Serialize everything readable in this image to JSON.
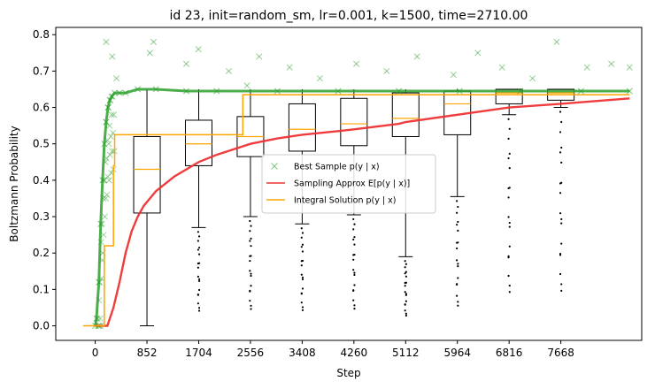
{
  "chart_data": {
    "type": "scatter",
    "title": "id 23, init=random_sm, lr=0.001, k=1500, time=2710.00",
    "xlabel": "Step",
    "ylabel": "Boltzmann Probability",
    "xlim": [
      -650,
      9000
    ],
    "ylim": [
      -0.04,
      0.82
    ],
    "x_ticks": [
      "0",
      "852",
      "1704",
      "2556",
      "3408",
      "4260",
      "5112",
      "5964",
      "6816",
      "7668"
    ],
    "y_ticks": [
      "0.0",
      "0.1",
      "0.2",
      "0.3",
      "0.4",
      "0.5",
      "0.6",
      "0.7",
      "0.8"
    ],
    "grid": false,
    "legend_position": "center",
    "series": [
      {
        "name": "Best Sample p(y | x)",
        "marker": "x",
        "color": "#2ca02c",
        "points": [
          [
            0,
            0.0
          ],
          [
            20,
            0.02
          ],
          [
            60,
            0.12
          ],
          [
            90,
            0.28
          ],
          [
            120,
            0.4
          ],
          [
            150,
            0.5
          ],
          [
            180,
            0.56
          ],
          [
            210,
            0.6
          ],
          [
            240,
            0.62
          ],
          [
            270,
            0.63
          ],
          [
            320,
            0.64
          ],
          [
            400,
            0.64
          ],
          [
            500,
            0.64
          ],
          [
            700,
            0.65
          ],
          [
            1000,
            0.65
          ],
          [
            1500,
            0.645
          ],
          [
            2000,
            0.645
          ],
          [
            3000,
            0.645
          ],
          [
            4000,
            0.645
          ],
          [
            5000,
            0.645
          ],
          [
            6000,
            0.645
          ],
          [
            7000,
            0.645
          ],
          [
            8000,
            0.645
          ],
          [
            8800,
            0.645
          ]
        ],
        "scatter_above": [
          [
            180,
            0.78
          ],
          [
            280,
            0.74
          ],
          [
            350,
            0.68
          ],
          [
            900,
            0.75
          ],
          [
            960,
            0.78
          ],
          [
            1500,
            0.72
          ],
          [
            1700,
            0.76
          ],
          [
            2200,
            0.7
          ],
          [
            2500,
            0.66
          ],
          [
            2700,
            0.74
          ],
          [
            3200,
            0.71
          ],
          [
            3700,
            0.68
          ],
          [
            4300,
            0.72
          ],
          [
            4800,
            0.7
          ],
          [
            5300,
            0.74
          ],
          [
            5900,
            0.69
          ],
          [
            6300,
            0.75
          ],
          [
            6700,
            0.71
          ],
          [
            7200,
            0.68
          ],
          [
            7600,
            0.78
          ],
          [
            8100,
            0.71
          ],
          [
            8500,
            0.72
          ],
          [
            8800,
            0.71
          ]
        ]
      },
      {
        "name": "Sampling Approx E[p(y | x)]",
        "color": "#ee3333",
        "points": [
          [
            0,
            0.0
          ],
          [
            200,
            0.0
          ],
          [
            300,
            0.05
          ],
          [
            400,
            0.12
          ],
          [
            500,
            0.2
          ],
          [
            600,
            0.26
          ],
          [
            700,
            0.3
          ],
          [
            800,
            0.33
          ],
          [
            1000,
            0.37
          ],
          [
            1300,
            0.41
          ],
          [
            1704,
            0.45
          ],
          [
            2000,
            0.47
          ],
          [
            2556,
            0.5
          ],
          [
            3000,
            0.515
          ],
          [
            3408,
            0.525
          ],
          [
            4000,
            0.535
          ],
          [
            4260,
            0.54
          ],
          [
            5000,
            0.555
          ],
          [
            5112,
            0.56
          ],
          [
            5964,
            0.58
          ],
          [
            6816,
            0.6
          ],
          [
            7668,
            0.61
          ],
          [
            8800,
            0.625
          ]
        ]
      },
      {
        "name": "Integral Solution p(y | x)",
        "color": "#ffa500",
        "points": [
          [
            -200,
            0.0
          ],
          [
            150,
            0.0
          ],
          [
            150,
            0.22
          ],
          [
            300,
            0.22
          ],
          [
            300,
            0.44
          ],
          [
            320,
            0.44
          ],
          [
            320,
            0.525
          ],
          [
            2430,
            0.525
          ],
          [
            2430,
            0.635
          ],
          [
            8800,
            0.635
          ]
        ]
      }
    ],
    "boxplots": [
      {
        "x": 852,
        "q1": 0.31,
        "median": 0.43,
        "q3": 0.52,
        "whisker_low": 0.0,
        "whisker_high": 0.65
      },
      {
        "x": 1704,
        "q1": 0.44,
        "median": 0.5,
        "q3": 0.565,
        "whisker_low": 0.27,
        "whisker_high": 0.65
      },
      {
        "x": 2556,
        "q1": 0.465,
        "median": 0.52,
        "q3": 0.575,
        "whisker_low": 0.3,
        "whisker_high": 0.65
      },
      {
        "x": 3408,
        "q1": 0.48,
        "median": 0.54,
        "q3": 0.61,
        "whisker_low": 0.28,
        "whisker_high": 0.65
      },
      {
        "x": 4260,
        "q1": 0.495,
        "median": 0.555,
        "q3": 0.625,
        "whisker_low": 0.305,
        "whisker_high": 0.65
      },
      {
        "x": 5112,
        "q1": 0.52,
        "median": 0.57,
        "q3": 0.64,
        "whisker_low": 0.19,
        "whisker_high": 0.65
      },
      {
        "x": 5964,
        "q1": 0.525,
        "median": 0.61,
        "q3": 0.645,
        "whisker_low": 0.355,
        "whisker_high": 0.65
      },
      {
        "x": 6816,
        "q1": 0.61,
        "median": 0.64,
        "q3": 0.65,
        "whisker_low": 0.58,
        "whisker_high": 0.65
      },
      {
        "x": 7668,
        "q1": 0.62,
        "median": 0.64,
        "q3": 0.65,
        "whisker_low": 0.6,
        "whisker_high": 0.65
      }
    ],
    "legend": [
      {
        "label": "Best Sample p(y | x)",
        "color": "#2ca02c",
        "marker": "x"
      },
      {
        "label": "Sampling Approx E[p(y | x)]",
        "color": "#ee3333",
        "marker": "line"
      },
      {
        "label": "Integral Solution p(y | x)",
        "color": "#ffa500",
        "marker": "line"
      }
    ]
  }
}
